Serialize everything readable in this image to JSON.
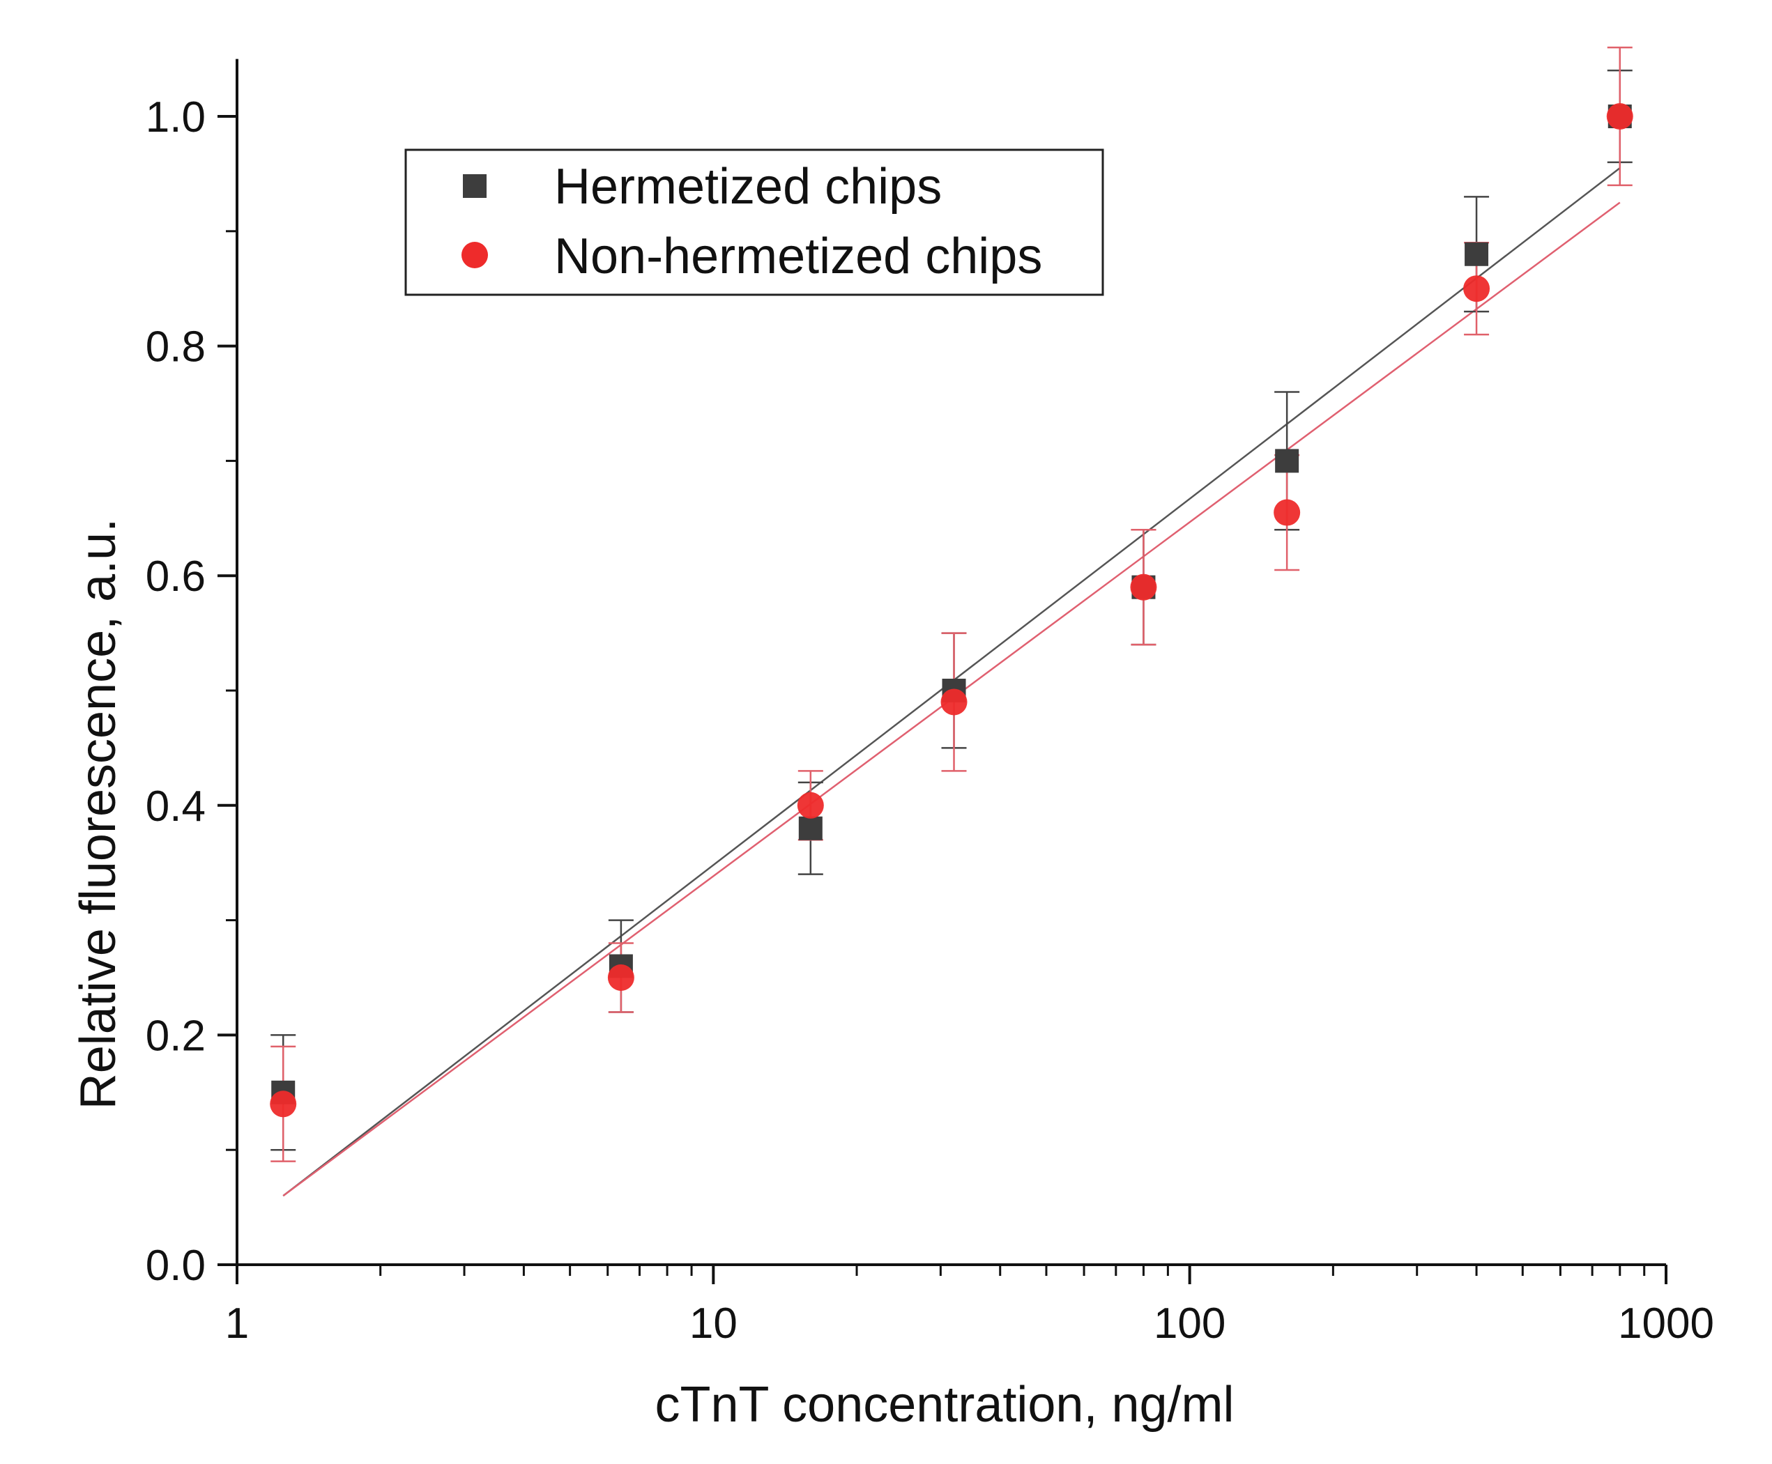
{
  "chart_data": {
    "type": "scatter",
    "title": "",
    "xlabel": "cTnT concentration, ng/ml",
    "ylabel": "Relative fluorescence, a.u.",
    "xscale": "log",
    "xlim": [
      1,
      1000
    ],
    "ylim": [
      0.0,
      1.05
    ],
    "x_ticks": [
      1,
      10,
      100,
      1000
    ],
    "x_tick_labels": [
      "1",
      "10",
      "100",
      "1000"
    ],
    "y_ticks": [
      0.0,
      0.2,
      0.4,
      0.6,
      0.8,
      1.0
    ],
    "y_tick_labels": [
      "0.0",
      "0.2",
      "0.4",
      "0.6",
      "0.8",
      "1.0"
    ],
    "grid": false,
    "legend": {
      "position": "top-left",
      "entries": [
        "Hermetized chips",
        "Non-hermetized chips"
      ]
    },
    "series": [
      {
        "name": "Hermetized chips",
        "marker": "square",
        "color": "#3d3d3d",
        "x": [
          1.25,
          6.4,
          16,
          32,
          80,
          160,
          400,
          800
        ],
        "y": [
          0.15,
          0.26,
          0.38,
          0.5,
          0.59,
          0.7,
          0.88,
          1.0
        ],
        "err": [
          0.05,
          0.04,
          0.04,
          0.05,
          0.05,
          0.06,
          0.05,
          0.04
        ],
        "fit": {
          "x": [
            1.25,
            800
          ],
          "y": [
            0.06,
            0.955
          ],
          "color": "#555555"
        }
      },
      {
        "name": "Non-hermetized chips",
        "marker": "circle",
        "color": "#ee2b2b",
        "x": [
          1.25,
          6.4,
          16,
          32,
          80,
          160,
          400,
          800
        ],
        "y": [
          0.14,
          0.25,
          0.4,
          0.49,
          0.59,
          0.655,
          0.85,
          1.0
        ],
        "err": [
          0.05,
          0.03,
          0.03,
          0.06,
          0.05,
          0.05,
          0.04,
          0.06
        ],
        "fit": {
          "x": [
            1.25,
            800
          ],
          "y": [
            0.06,
            0.925
          ],
          "color": "#e06070"
        }
      }
    ]
  }
}
